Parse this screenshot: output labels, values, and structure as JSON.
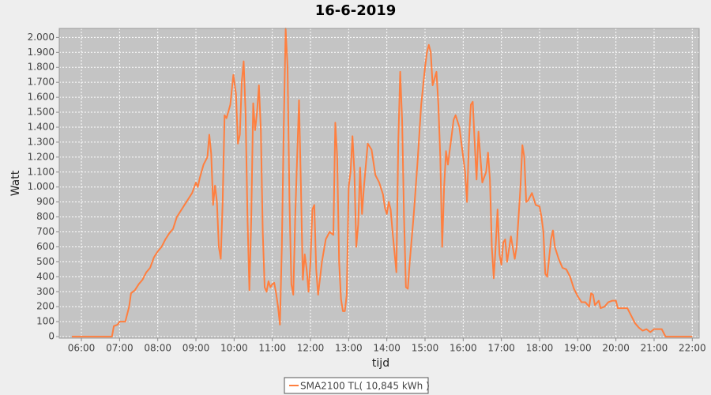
{
  "chart_data": {
    "type": "line",
    "title": "16-6-2019",
    "x_label": "tijd",
    "y_label": "Watt",
    "xlim": [
      5.42,
      22.18
    ],
    "ylim": [
      -10,
      2060
    ],
    "grid": true,
    "xticks": [
      {
        "value": 6,
        "label": "06:00"
      },
      {
        "value": 7,
        "label": "07:00"
      },
      {
        "value": 8,
        "label": "08:00"
      },
      {
        "value": 9,
        "label": "09:00"
      },
      {
        "value": 10,
        "label": "10:00"
      },
      {
        "value": 11,
        "label": "11:00"
      },
      {
        "value": 12,
        "label": "12:00"
      },
      {
        "value": 13,
        "label": "13:00"
      },
      {
        "value": 14,
        "label": "14:00"
      },
      {
        "value": 15,
        "label": "15:00"
      },
      {
        "value": 16,
        "label": "16:00"
      },
      {
        "value": 17,
        "label": "17:00"
      },
      {
        "value": 18,
        "label": "18:00"
      },
      {
        "value": 19,
        "label": "19:00"
      },
      {
        "value": 20,
        "label": "20:00"
      },
      {
        "value": 21,
        "label": "21:00"
      },
      {
        "value": 22,
        "label": "22:00"
      }
    ],
    "yticks": [
      0,
      100,
      200,
      300,
      400,
      500,
      600,
      700,
      800,
      900,
      {
        "value": 1000,
        "label": "1.000"
      },
      {
        "value": 1100,
        "label": "1.100"
      },
      {
        "value": 1200,
        "label": "1.200"
      },
      {
        "value": 1300,
        "label": "1.300"
      },
      {
        "value": 1400,
        "label": "1.400"
      },
      {
        "value": 1500,
        "label": "1.500"
      },
      {
        "value": 1600,
        "label": "1.600"
      },
      {
        "value": 1700,
        "label": "1.700"
      },
      {
        "value": 1800,
        "label": "1.800"
      },
      {
        "value": 1900,
        "label": "1.900"
      },
      {
        "value": 2000,
        "label": "2.000"
      }
    ],
    "x": [
      5.75,
      6.0,
      6.5,
      6.8,
      6.85,
      6.95,
      7.0,
      7.15,
      7.25,
      7.3,
      7.4,
      7.5,
      7.6,
      7.7,
      7.8,
      7.9,
      8.0,
      8.1,
      8.2,
      8.3,
      8.4,
      8.5,
      8.6,
      8.7,
      8.8,
      8.9,
      9.0,
      9.05,
      9.1,
      9.2,
      9.3,
      9.35,
      9.4,
      9.45,
      9.5,
      9.55,
      9.6,
      9.65,
      9.7,
      9.75,
      9.8,
      9.9,
      9.98,
      10.05,
      10.1,
      10.15,
      10.2,
      10.25,
      10.3,
      10.35,
      10.4,
      10.45,
      10.5,
      10.55,
      10.6,
      10.65,
      10.7,
      10.75,
      10.8,
      10.85,
      10.9,
      10.95,
      11.0,
      11.05,
      11.1,
      11.15,
      11.2,
      11.25,
      11.3,
      11.35,
      11.4,
      11.45,
      11.5,
      11.55,
      11.6,
      11.7,
      11.75,
      11.8,
      11.85,
      11.9,
      11.95,
      12.0,
      12.05,
      12.1,
      12.15,
      12.2,
      12.3,
      12.4,
      12.5,
      12.6,
      12.65,
      12.7,
      12.75,
      12.8,
      12.85,
      12.9,
      12.95,
      13.0,
      13.05,
      13.1,
      13.15,
      13.2,
      13.25,
      13.3,
      13.35,
      13.4,
      13.5,
      13.6,
      13.7,
      13.8,
      13.9,
      13.95,
      14.0,
      14.05,
      14.1,
      14.15,
      14.25,
      14.3,
      14.35,
      14.4,
      14.45,
      14.5,
      14.55,
      14.6,
      14.7,
      14.8,
      14.9,
      15.0,
      15.05,
      15.1,
      15.15,
      15.2,
      15.3,
      15.35,
      15.4,
      15.45,
      15.5,
      15.55,
      15.6,
      15.7,
      15.75,
      15.8,
      15.9,
      16.0,
      16.05,
      16.1,
      16.15,
      16.2,
      16.25,
      16.3,
      16.35,
      16.4,
      16.45,
      16.5,
      16.6,
      16.65,
      16.7,
      16.75,
      16.8,
      16.85,
      16.9,
      16.95,
      17.0,
      17.05,
      17.1,
      17.15,
      17.25,
      17.35,
      17.4,
      17.5,
      17.55,
      17.6,
      17.65,
      17.7,
      17.8,
      17.9,
      18.0,
      18.05,
      18.1,
      18.15,
      18.2,
      18.3,
      18.35,
      18.4,
      18.5,
      18.6,
      18.7,
      18.8,
      18.9,
      19.0,
      19.1,
      19.2,
      19.3,
      19.35,
      19.4,
      19.45,
      19.55,
      19.6,
      19.7,
      19.8,
      19.9,
      20.0,
      20.05,
      20.3,
      20.4,
      20.5,
      20.6,
      20.7,
      20.8,
      20.9,
      21.0,
      21.2,
      21.3,
      21.5,
      22.0
    ],
    "series": [
      {
        "name": "SMA2100 TL( 10,845 kWh )",
        "color": "#ff7f3f",
        "values": [
          0,
          0,
          0,
          0,
          70,
          80,
          100,
          100,
          200,
          290,
          310,
          350,
          380,
          430,
          460,
          530,
          570,
          600,
          650,
          690,
          720,
          800,
          840,
          880,
          920,
          960,
          1030,
          1000,
          1060,
          1150,
          1200,
          1350,
          1220,
          880,
          1010,
          900,
          600,
          520,
          900,
          1480,
          1460,
          1550,
          1750,
          1620,
          1290,
          1350,
          1700,
          1840,
          1500,
          800,
          310,
          800,
          1560,
          1380,
          1500,
          1680,
          1380,
          700,
          330,
          300,
          370,
          330,
          350,
          360,
          290,
          200,
          80,
          600,
          1400,
          2060,
          1800,
          900,
          350,
          280,
          800,
          1580,
          1000,
          380,
          550,
          450,
          300,
          500,
          850,
          880,
          450,
          280,
          500,
          650,
          700,
          680,
          1430,
          1200,
          500,
          250,
          170,
          170,
          280,
          1000,
          1100,
          1340,
          1100,
          600,
          750,
          1130,
          820,
          1000,
          1290,
          1250,
          1080,
          1030,
          950,
          860,
          820,
          900,
          850,
          700,
          430,
          1300,
          1770,
          1450,
          800,
          330,
          320,
          500,
          800,
          1150,
          1550,
          1800,
          1900,
          1950,
          1900,
          1680,
          1770,
          1550,
          1200,
          600,
          1000,
          1240,
          1150,
          1350,
          1450,
          1480,
          1400,
          1200,
          1100,
          900,
          1300,
          1550,
          1570,
          1300,
          1050,
          1370,
          1200,
          1030,
          1100,
          1230,
          1050,
          600,
          390,
          600,
          850,
          550,
          480,
          630,
          650,
          500,
          670,
          520,
          600,
          1000,
          1280,
          1200,
          900,
          910,
          960,
          880,
          870,
          800,
          700,
          420,
          400,
          650,
          710,
          600,
          520,
          460,
          450,
          400,
          320,
          270,
          230,
          230,
          200,
          290,
          280,
          210,
          240,
          190,
          200,
          230,
          240,
          240,
          190,
          190,
          140,
          90,
          60,
          40,
          50,
          30,
          50,
          50,
          0,
          0,
          0
        ]
      }
    ]
  }
}
